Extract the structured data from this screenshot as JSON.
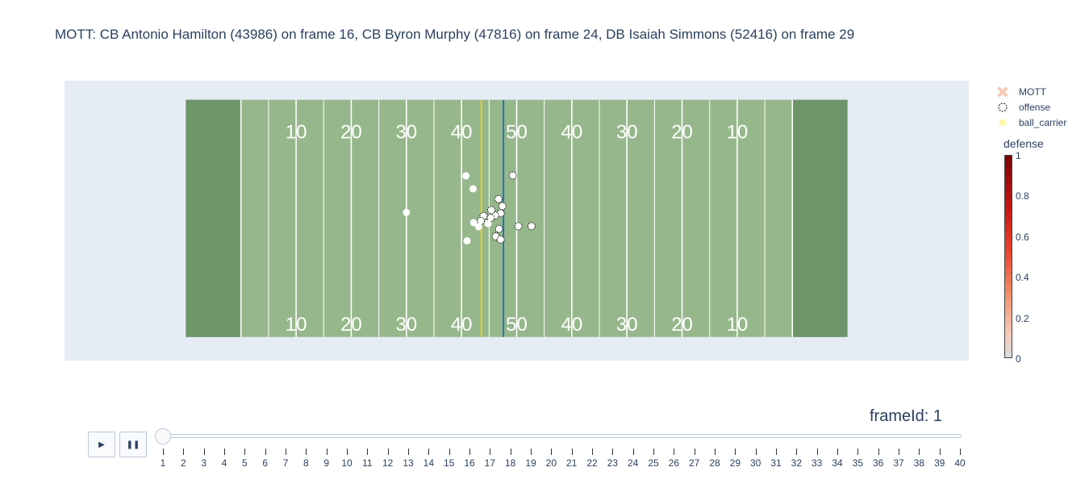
{
  "chart_data": {
    "type": "scatter",
    "title": "MOTT: CB Antonio Hamilton (43986) on frame 16, CB Byron Murphy (47816) on frame 24, DB Isaiah Simmons (52416) on frame 29",
    "xlim": [
      -22,
      142
    ],
    "ylim": [
      -5.3,
      57.6
    ],
    "field": {
      "length": 120,
      "width": 53.3,
      "yard_numbers": [
        "10",
        "20",
        "30",
        "40",
        "50",
        "40",
        "30",
        "20",
        "10"
      ],
      "line_of_scrimmage_x": 57.6,
      "first_down_x": 53.6,
      "colors": {
        "background": "#e5ecf6",
        "field": "#96b78b",
        "endzone": "#6f966b",
        "scrimmage_line": "#1f77b4",
        "first_down_line": "#e5d030",
        "lines": "#ffffff"
      }
    },
    "legend": [
      {
        "name": "MOTT",
        "symbol": "x-icon",
        "color": "#f5c9b7"
      },
      {
        "name": "offense",
        "symbol": "dashed-circle-icon",
        "color": "#ffffff"
      },
      {
        "name": "ball_carrier",
        "symbol": "dot-icon",
        "color": "#fff8a8"
      }
    ],
    "colorbar": {
      "title": "defense",
      "ticks": [
        "1",
        "0.8",
        "0.6",
        "0.4",
        "0.2",
        "0"
      ]
    },
    "series": [
      {
        "name": "offense",
        "points": [
          [
            59.3,
            36.3
          ],
          [
            56.7,
            31.0
          ],
          [
            57.4,
            29.4
          ],
          [
            57.1,
            27.8
          ],
          [
            56.1,
            27.3
          ],
          [
            55.3,
            26.8
          ],
          [
            55.4,
            28.5
          ],
          [
            54.0,
            27.2
          ],
          [
            53.5,
            26.1
          ],
          [
            56.8,
            24.3
          ],
          [
            56.2,
            22.6
          ],
          [
            60.3,
            24.9
          ],
          [
            62.7,
            24.9
          ],
          [
            57.1,
            21.9
          ]
        ]
      },
      {
        "name": "defense",
        "points": [
          [
            50.8,
            36.2
          ],
          [
            52.1,
            33.3
          ],
          [
            40.0,
            28.0
          ],
          [
            52.2,
            25.7
          ],
          [
            51.0,
            21.6
          ],
          [
            53.1,
            24.8
          ],
          [
            54.8,
            25.5
          ]
        ]
      }
    ]
  },
  "controls": {
    "play_label": "▶",
    "pause_label": "❚❚",
    "frame_label": "frameId: 1",
    "frames": [
      "1",
      "2",
      "3",
      "4",
      "5",
      "6",
      "7",
      "8",
      "9",
      "10",
      "11",
      "12",
      "13",
      "14",
      "15",
      "16",
      "17",
      "18",
      "19",
      "20",
      "21",
      "22",
      "23",
      "24",
      "25",
      "26",
      "27",
      "28",
      "29",
      "30",
      "31",
      "32",
      "33",
      "34",
      "35",
      "36",
      "37",
      "38",
      "39",
      "40"
    ]
  }
}
